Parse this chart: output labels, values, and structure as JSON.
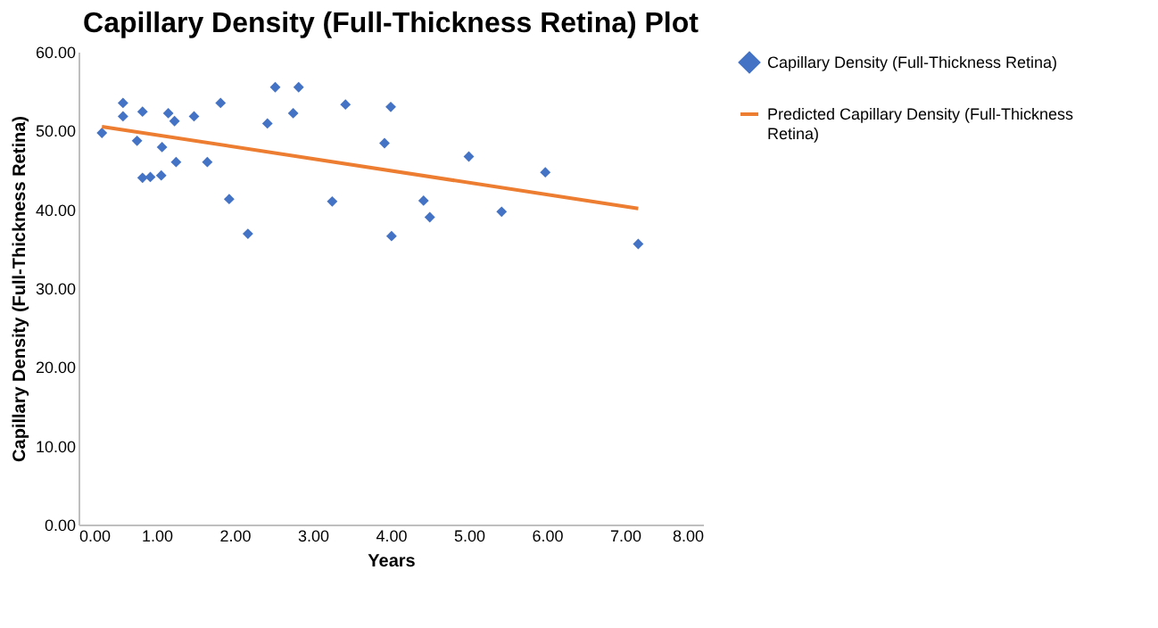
{
  "chart_data": {
    "type": "scatter",
    "title": "Capillary Density (Full-Thickness Retina) Plot",
    "xlabel": "Years",
    "ylabel": "Capillary Density (Full-Thickness Retina)",
    "xlim": [
      0,
      8
    ],
    "ylim": [
      0,
      60
    ],
    "xticks": [
      {
        "value": 0,
        "label": "0.00"
      },
      {
        "value": 1,
        "label": "1.00"
      },
      {
        "value": 2,
        "label": "2.00"
      },
      {
        "value": 3,
        "label": "3.00"
      },
      {
        "value": 4,
        "label": "4.00"
      },
      {
        "value": 5,
        "label": "5.00"
      },
      {
        "value": 6,
        "label": "6.00"
      },
      {
        "value": 7,
        "label": "7.00"
      },
      {
        "value": 8,
        "label": "8.00"
      }
    ],
    "yticks": [
      {
        "value": 0,
        "label": "0.00"
      },
      {
        "value": 10,
        "label": "10.00"
      },
      {
        "value": 20,
        "label": "20.00"
      },
      {
        "value": 30,
        "label": "30.00"
      },
      {
        "value": 40,
        "label": "40.00"
      },
      {
        "value": 50,
        "label": "50.00"
      },
      {
        "value": 60,
        "label": "60.00"
      }
    ],
    "grid": false,
    "legend": "right",
    "marker": "diamond",
    "series": [
      {
        "name": "Capillary Density (Full-Thickness Retina)",
        "color": "#4472c4",
        "x": [
          0.3,
          0.57,
          0.57,
          0.75,
          0.82,
          0.82,
          0.92,
          1.06,
          1.07,
          1.15,
          1.23,
          1.25,
          1.48,
          1.65,
          1.82,
          1.93,
          2.17,
          2.42,
          2.52,
          2.75,
          2.82,
          3.25,
          3.42,
          3.92,
          4.0,
          4.01,
          4.42,
          4.5,
          5.0,
          5.42,
          5.98,
          7.17
        ],
        "values": [
          49.7,
          53.5,
          51.8,
          48.7,
          52.4,
          44.0,
          44.1,
          44.3,
          47.9,
          52.2,
          51.2,
          46.0,
          51.8,
          46.0,
          53.5,
          41.3,
          36.9,
          50.9,
          55.5,
          52.2,
          55.5,
          41.0,
          53.3,
          48.4,
          53.0,
          36.6,
          41.1,
          39.0,
          46.7,
          39.7,
          44.7,
          35.6
        ]
      },
      {
        "name": "Predicted Capillary Density (Full-Thickness Retina)",
        "color": "#ed7d31",
        "type": "line",
        "line_style": "solid",
        "marker": "none",
        "x": [
          0.3,
          7.17
        ],
        "values": [
          50.5,
          40.1
        ]
      }
    ]
  }
}
